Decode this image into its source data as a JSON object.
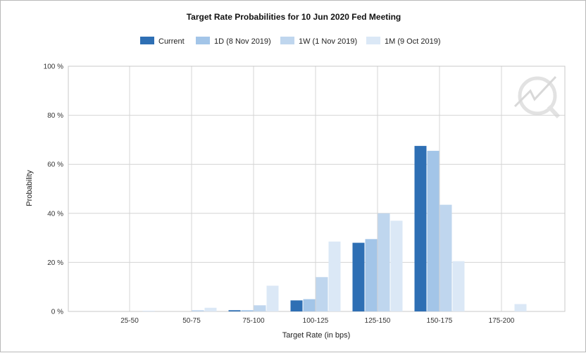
{
  "chart_data": {
    "type": "bar",
    "title": "Target Rate Probabilities for 10 Jun 2020 Fed Meeting",
    "xlabel": "Target Rate (in bps)",
    "ylabel": "Probability",
    "ylim": [
      0,
      100
    ],
    "yticks": [
      0,
      20,
      40,
      60,
      80,
      100
    ],
    "ytick_suffix": " %",
    "grid": true,
    "legend_position": "top-center",
    "categories": [
      "25-50",
      "50-75",
      "75-100",
      "100-125",
      "125-150",
      "150-175",
      "175-200"
    ],
    "series": [
      {
        "name": "Current",
        "color": "#2e6fb4",
        "values": [
          0,
          0,
          0.5,
          4.5,
          28,
          67.5,
          0
        ]
      },
      {
        "name": "1D (8 Nov 2019)",
        "color": "#a3c5e8",
        "values": [
          0,
          0,
          0.5,
          5,
          29.5,
          65.5,
          0
        ]
      },
      {
        "name": "1W (1 Nov 2019)",
        "color": "#bfd6ee",
        "values": [
          0,
          0.5,
          2.5,
          14,
          40,
          43.5,
          0
        ]
      },
      {
        "name": "1M (9 Oct 2019)",
        "color": "#dbe8f6",
        "values": [
          0.3,
          1.5,
          10.5,
          28.5,
          37,
          20.5,
          3
        ]
      }
    ]
  }
}
